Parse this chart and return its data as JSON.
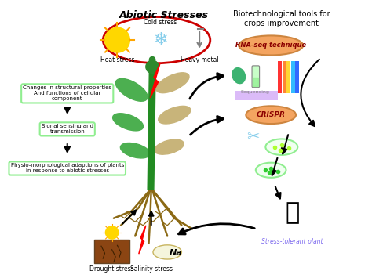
{
  "title_abiotic": "Abiotic Stresses",
  "title_biotech": "Biotechnological tools for\ncrops improvement",
  "stress_labels": [
    "Cold stress",
    "Heat stress",
    "Heavy metal"
  ],
  "left_boxes": [
    "Changes in structural properties\nAnd functions of cellular\ncomponent",
    "Signal sensing and\ntransmission",
    "Physio-morphological adaptions of plants\nin response to abiotic stresses"
  ],
  "bottom_labels": [
    "Drought stress",
    "Salinity stress",
    "Na"
  ],
  "biotech_labels": [
    "RNA-seq technique",
    "CRISPR",
    "Stress-tolerant plant",
    "Sequencing"
  ],
  "bg_color": "#ffffff",
  "box_edge_color": "#90ee90",
  "box_face_color": "#ffffff",
  "ellipse_abiotic_color": "#cc0000",
  "ellipse_biotech_color": "#f4a460",
  "arrow_color": "#1a1a1a",
  "plant_stem_color": "#228B22",
  "plant_root_color": "#8B6914",
  "sun_color": "#FFD700",
  "snowflake_color": "#87CEEB",
  "stress_tolerant_color": "#7B68EE"
}
